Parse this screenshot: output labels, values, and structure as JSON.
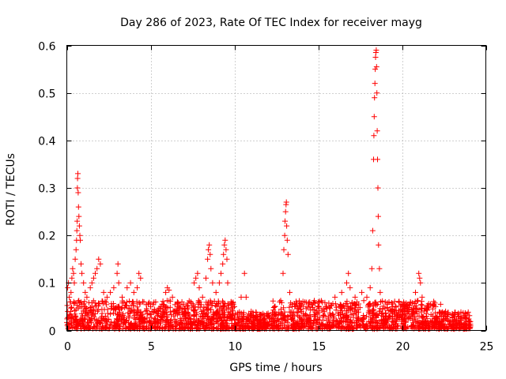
{
  "chart_data": {
    "type": "scatter",
    "title": "Day 286 of 2023, Rate Of TEC Index for receiver mayg",
    "xlabel": "GPS time / hours",
    "ylabel": "ROTI / TECUs",
    "xlim": [
      0,
      25
    ],
    "ylim": [
      0,
      0.6
    ],
    "x_ticks": [
      0,
      5,
      10,
      15,
      20,
      25
    ],
    "y_ticks": [
      0,
      0.1,
      0.2,
      0.3,
      0.4,
      0.5,
      0.6
    ],
    "x_tick_labels": [
      "0",
      "5",
      "10",
      "15",
      "20",
      "25"
    ],
    "y_tick_labels": [
      "0",
      "0.1",
      "0.2",
      "0.3",
      "0.4",
      "0.5",
      "0.6"
    ],
    "grid": true,
    "marker": "plus",
    "color": "#ff0000",
    "baseline_noise": {
      "x_range": [
        0,
        24.1
      ],
      "typical_max": 0.06,
      "density_per_hour": 90
    },
    "series": [
      {
        "name": "ROTI",
        "points": [
          [
            0.05,
            0.09
          ],
          [
            0.1,
            0.1
          ],
          [
            0.15,
            0.07
          ],
          [
            0.2,
            0.06
          ],
          [
            0.25,
            0.08
          ],
          [
            0.3,
            0.11
          ],
          [
            0.35,
            0.13
          ],
          [
            0.4,
            0.12
          ],
          [
            0.45,
            0.1
          ],
          [
            0.5,
            0.15
          ],
          [
            0.55,
            0.17
          ],
          [
            0.58,
            0.19
          ],
          [
            0.6,
            0.21
          ],
          [
            0.62,
            0.23
          ],
          [
            0.63,
            0.3
          ],
          [
            0.64,
            0.32
          ],
          [
            0.66,
            0.33
          ],
          [
            0.68,
            0.29
          ],
          [
            0.7,
            0.26
          ],
          [
            0.72,
            0.24
          ],
          [
            0.75,
            0.22
          ],
          [
            0.78,
            0.2
          ],
          [
            0.8,
            0.19
          ],
          [
            0.85,
            0.14
          ],
          [
            0.9,
            0.12
          ],
          [
            1.0,
            0.1
          ],
          [
            1.1,
            0.08
          ],
          [
            1.2,
            0.07
          ],
          [
            1.4,
            0.09
          ],
          [
            1.5,
            0.1
          ],
          [
            1.6,
            0.11
          ],
          [
            1.7,
            0.12
          ],
          [
            1.8,
            0.13
          ],
          [
            1.9,
            0.15
          ],
          [
            2.0,
            0.14
          ],
          [
            2.2,
            0.08
          ],
          [
            2.4,
            0.07
          ],
          [
            2.6,
            0.08
          ],
          [
            2.8,
            0.09
          ],
          [
            3.0,
            0.12
          ],
          [
            3.05,
            0.14
          ],
          [
            3.1,
            0.1
          ],
          [
            3.3,
            0.07
          ],
          [
            3.6,
            0.09
          ],
          [
            3.8,
            0.1
          ],
          [
            4.0,
            0.08
          ],
          [
            4.2,
            0.09
          ],
          [
            4.3,
            0.12
          ],
          [
            4.4,
            0.11
          ],
          [
            4.6,
            0.06
          ],
          [
            5.0,
            0.05
          ],
          [
            5.3,
            0.06
          ],
          [
            5.6,
            0.05
          ],
          [
            5.9,
            0.08
          ],
          [
            6.0,
            0.09
          ],
          [
            6.1,
            0.085
          ],
          [
            6.3,
            0.07
          ],
          [
            6.6,
            0.06
          ],
          [
            7.0,
            0.04
          ],
          [
            7.4,
            0.06
          ],
          [
            7.6,
            0.1
          ],
          [
            7.7,
            0.11
          ],
          [
            7.8,
            0.12
          ],
          [
            7.9,
            0.09
          ],
          [
            8.1,
            0.07
          ],
          [
            8.3,
            0.11
          ],
          [
            8.4,
            0.15
          ],
          [
            8.45,
            0.17
          ],
          [
            8.5,
            0.18
          ],
          [
            8.55,
            0.16
          ],
          [
            8.6,
            0.13
          ],
          [
            8.7,
            0.1
          ],
          [
            8.9,
            0.08
          ],
          [
            9.1,
            0.1
          ],
          [
            9.2,
            0.12
          ],
          [
            9.3,
            0.14
          ],
          [
            9.35,
            0.16
          ],
          [
            9.4,
            0.18
          ],
          [
            9.45,
            0.19
          ],
          [
            9.5,
            0.17
          ],
          [
            9.55,
            0.15
          ],
          [
            9.6,
            0.1
          ],
          [
            9.8,
            0.06
          ],
          [
            10.0,
            0.05
          ],
          [
            10.4,
            0.07
          ],
          [
            10.6,
            0.12
          ],
          [
            10.7,
            0.07
          ],
          [
            11.0,
            0.04
          ],
          [
            11.5,
            0.03
          ],
          [
            12.0,
            0.03
          ],
          [
            12.4,
            0.05
          ],
          [
            12.7,
            0.06
          ],
          [
            12.9,
            0.12
          ],
          [
            12.95,
            0.17
          ],
          [
            13.0,
            0.2
          ],
          [
            13.02,
            0.23
          ],
          [
            13.05,
            0.25
          ],
          [
            13.08,
            0.265
          ],
          [
            13.1,
            0.27
          ],
          [
            13.12,
            0.22
          ],
          [
            13.15,
            0.19
          ],
          [
            13.2,
            0.16
          ],
          [
            13.3,
            0.08
          ],
          [
            13.6,
            0.05
          ],
          [
            14.0,
            0.04
          ],
          [
            14.5,
            0.05
          ],
          [
            15.0,
            0.06
          ],
          [
            15.5,
            0.05
          ],
          [
            16.0,
            0.07
          ],
          [
            16.4,
            0.08
          ],
          [
            16.7,
            0.1
          ],
          [
            16.8,
            0.12
          ],
          [
            16.9,
            0.09
          ],
          [
            17.2,
            0.07
          ],
          [
            17.6,
            0.08
          ],
          [
            17.9,
            0.07
          ],
          [
            18.1,
            0.09
          ],
          [
            18.2,
            0.13
          ],
          [
            18.25,
            0.21
          ],
          [
            18.3,
            0.36
          ],
          [
            18.32,
            0.41
          ],
          [
            18.34,
            0.45
          ],
          [
            18.36,
            0.49
          ],
          [
            18.38,
            0.52
          ],
          [
            18.4,
            0.55
          ],
          [
            18.42,
            0.575
          ],
          [
            18.44,
            0.585
          ],
          [
            18.46,
            0.59
          ],
          [
            18.48,
            0.555
          ],
          [
            18.5,
            0.5
          ],
          [
            18.52,
            0.42
          ],
          [
            18.54,
            0.36
          ],
          [
            18.56,
            0.3
          ],
          [
            18.58,
            0.24
          ],
          [
            18.6,
            0.18
          ],
          [
            18.65,
            0.13
          ],
          [
            18.7,
            0.08
          ],
          [
            19.0,
            0.06
          ],
          [
            19.4,
            0.05
          ],
          [
            19.8,
            0.06
          ],
          [
            20.2,
            0.05
          ],
          [
            20.5,
            0.06
          ],
          [
            20.8,
            0.08
          ],
          [
            21.0,
            0.12
          ],
          [
            21.05,
            0.11
          ],
          [
            21.1,
            0.1
          ],
          [
            21.2,
            0.07
          ],
          [
            21.5,
            0.05
          ],
          [
            22.0,
            0.05
          ],
          [
            22.3,
            0.055
          ],
          [
            22.6,
            0.04
          ],
          [
            23.0,
            0.035
          ],
          [
            23.4,
            0.03
          ],
          [
            23.8,
            0.025
          ],
          [
            24.0,
            0.02
          ]
        ]
      }
    ]
  }
}
